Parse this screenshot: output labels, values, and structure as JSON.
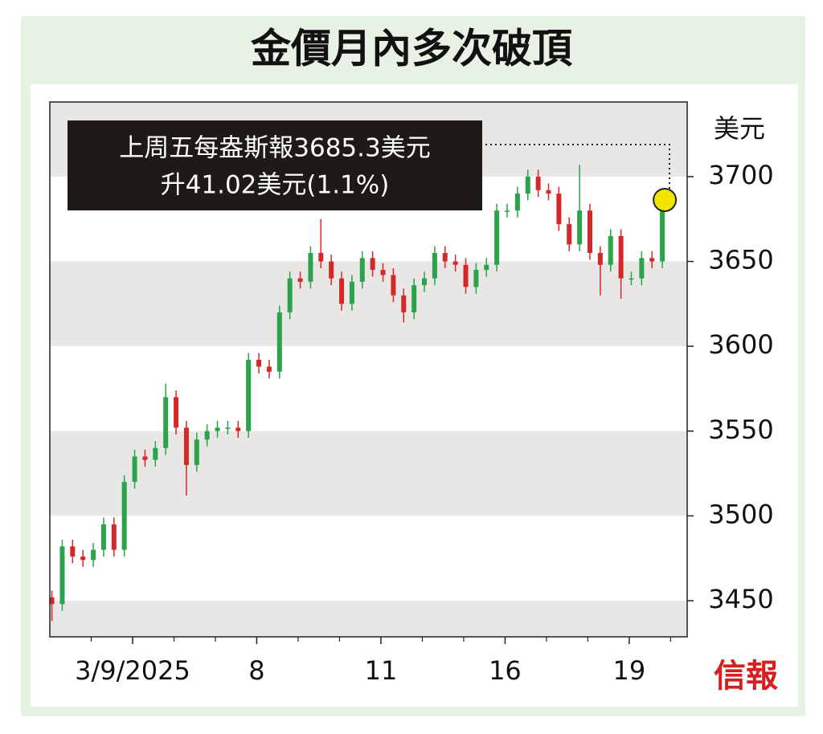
{
  "chart_data": {
    "type": "candlestick",
    "title": "金價月內多次破頂",
    "y_label": "美元",
    "annotation": [
      "上周五每盎斯報3685.3美元",
      "升41.02美元(1.1%)"
    ],
    "source": "信報",
    "highlight": {
      "x": 14.8,
      "value": 3685.3,
      "color": "#f2e600"
    },
    "up_color": "#2aa34a",
    "down_color": "#d62828",
    "xlim": [
      0,
      15.4
    ],
    "xticks": [
      {
        "value": 2,
        "label": "3/9/2025"
      },
      {
        "value": 5,
        "label": "8"
      },
      {
        "value": 8,
        "label": "11"
      },
      {
        "value": 11,
        "label": "16"
      },
      {
        "value": 14,
        "label": "19"
      }
    ],
    "x_minor_ticks": [
      1,
      3,
      4,
      6,
      7,
      9,
      10,
      12,
      13,
      15
    ],
    "ylim": [
      3428.7,
      3744
    ],
    "yticks": [
      3450,
      3500,
      3550,
      3600,
      3650,
      3700
    ],
    "x": [
      0.05,
      0.3,
      0.55,
      0.8,
      1.05,
      1.3,
      1.55,
      1.8,
      2.05,
      2.3,
      2.55,
      2.8,
      3.05,
      3.3,
      3.55,
      3.8,
      4.05,
      4.3,
      4.55,
      4.8,
      5.05,
      5.3,
      5.55,
      5.8,
      6.05,
      6.3,
      6.55,
      6.8,
      7.05,
      7.3,
      7.55,
      7.8,
      8.05,
      8.3,
      8.55,
      8.8,
      9.05,
      9.3,
      9.55,
      9.8,
      10.05,
      10.3,
      10.55,
      10.8,
      11.05,
      11.3,
      11.55,
      11.8,
      12.05,
      12.3,
      12.55,
      12.8,
      13.05,
      13.3,
      13.55,
      13.8,
      14.05,
      14.3,
      14.55,
      14.8
    ],
    "open": [
      3452,
      3448,
      3482,
      3476,
      3474,
      3480,
      3495,
      3480,
      3520,
      3535,
      3533,
      3540,
      3570,
      3552,
      3530,
      3545,
      3550,
      3552,
      3552,
      3550,
      3592,
      3588,
      3585,
      3620,
      3640,
      3638,
      3655,
      3650,
      3640,
      3625,
      3638,
      3652,
      3645,
      3642,
      3630,
      3620,
      3636,
      3640,
      3655,
      3650,
      3648,
      3635,
      3645,
      3648,
      3680,
      3680,
      3690,
      3700,
      3692,
      3690,
      3672,
      3660,
      3680,
      3655,
      3648,
      3665,
      3640,
      3640,
      3652,
      3650
    ],
    "high": [
      3456,
      3486,
      3486,
      3480,
      3484,
      3499,
      3499,
      3524,
      3539,
      3539,
      3544,
      3578,
      3574,
      3556,
      3549,
      3554,
      3556,
      3556,
      3556,
      3596,
      3596,
      3592,
      3624,
      3644,
      3644,
      3659,
      3675,
      3654,
      3644,
      3642,
      3656,
      3656,
      3649,
      3646,
      3634,
      3640,
      3644,
      3659,
      3659,
      3654,
      3652,
      3649,
      3652,
      3684,
      3684,
      3694,
      3704,
      3704,
      3696,
      3694,
      3676,
      3707,
      3684,
      3659,
      3669,
      3669,
      3644,
      3656,
      3656,
      3689
    ],
    "low": [
      3438,
      3444,
      3472,
      3470,
      3470,
      3476,
      3476,
      3476,
      3516,
      3529,
      3529,
      3536,
      3548,
      3512,
      3526,
      3541,
      3546,
      3548,
      3546,
      3546,
      3584,
      3581,
      3581,
      3616,
      3634,
      3634,
      3646,
      3636,
      3621,
      3621,
      3634,
      3641,
      3638,
      3626,
      3614,
      3616,
      3632,
      3636,
      3646,
      3644,
      3631,
      3631,
      3641,
      3644,
      3676,
      3676,
      3686,
      3688,
      3686,
      3668,
      3656,
      3656,
      3651,
      3630,
      3644,
      3628,
      3636,
      3636,
      3646,
      3646
    ],
    "close": [
      3448,
      3482,
      3476,
      3474,
      3480,
      3495,
      3480,
      3520,
      3535,
      3533,
      3540,
      3570,
      3552,
      3530,
      3545,
      3550,
      3552,
      3552,
      3550,
      3592,
      3588,
      3585,
      3620,
      3640,
      3638,
      3655,
      3650,
      3640,
      3625,
      3638,
      3652,
      3645,
      3642,
      3630,
      3620,
      3636,
      3640,
      3655,
      3650,
      3648,
      3635,
      3645,
      3648,
      3680,
      3680,
      3690,
      3700,
      3692,
      3690,
      3672,
      3660,
      3680,
      3655,
      3648,
      3665,
      3640,
      3640,
      3652,
      3650,
      3685
    ]
  }
}
